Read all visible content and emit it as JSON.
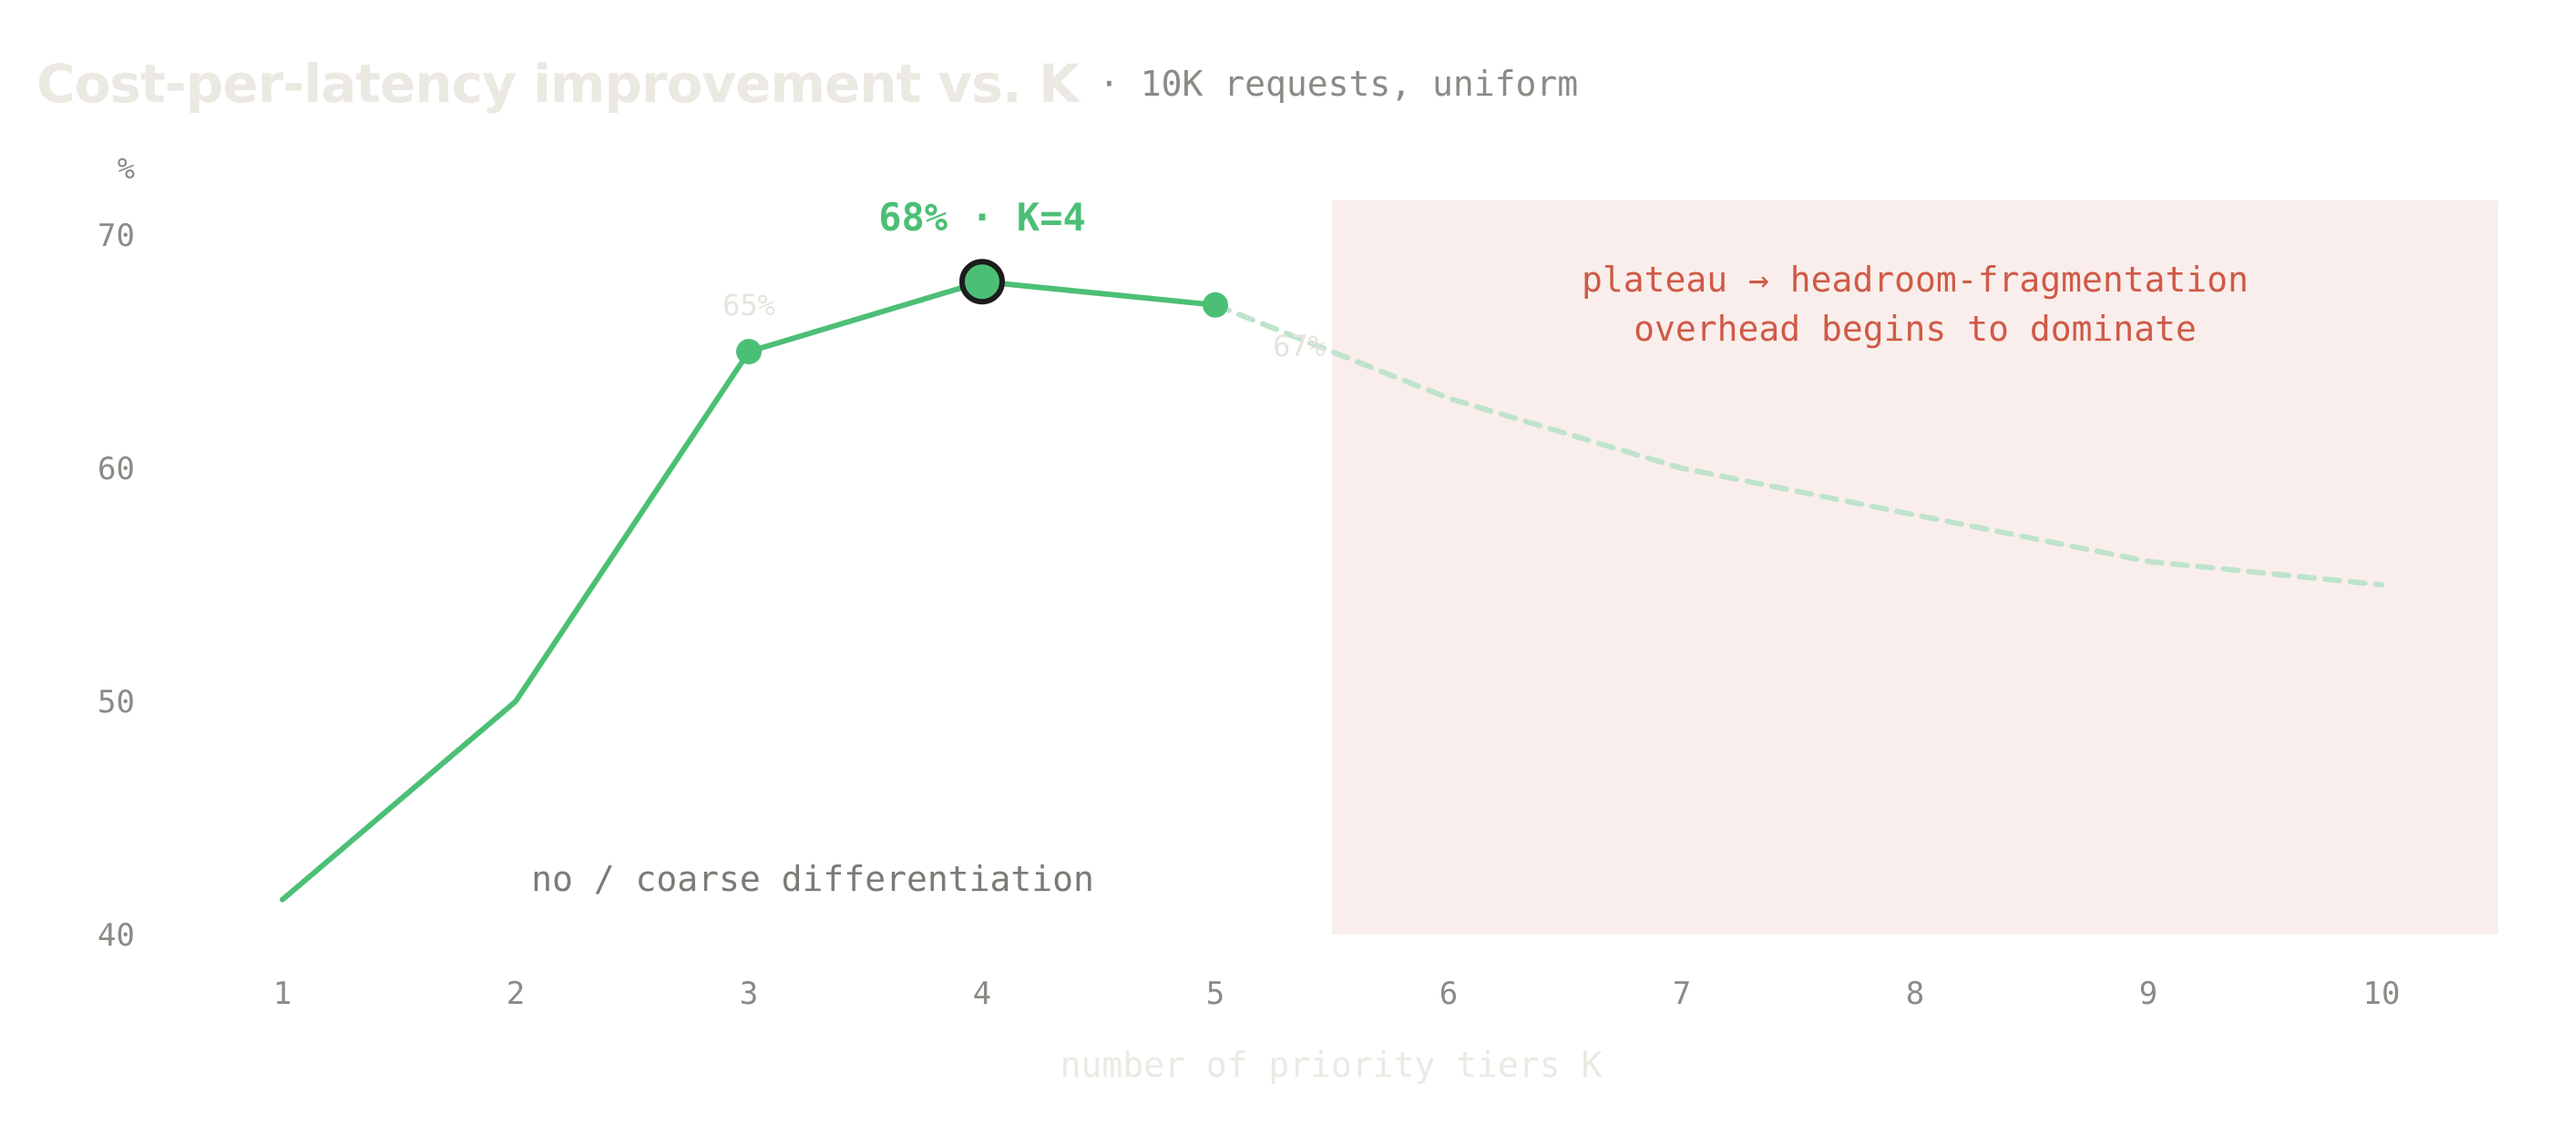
{
  "title": "Cost-per-latency improvement vs. K",
  "subtitle": "· 10K requests, uniform",
  "colors": {
    "line": "#4cbf76",
    "line_faded": "#bfe3cc",
    "shade": "#f9eeeb",
    "annotation_red": "#cf5a47",
    "title": "#ebe9e2",
    "axis_text": "#8c8a85"
  },
  "chart_data": {
    "type": "line",
    "xlabel": "number of priority tiers K",
    "ylabel": "%",
    "xlim": [
      0.1,
      10.5
    ],
    "ylim": [
      40,
      72.7
    ],
    "xticks": [
      1,
      2,
      3,
      4,
      5,
      6,
      7,
      8,
      9,
      10
    ],
    "yticks": [
      40,
      50,
      60,
      70
    ],
    "grid": false,
    "series": [
      {
        "style": "solid",
        "x": [
          1,
          2,
          3,
          4,
          5
        ],
        "y": [
          41.5,
          50,
          65,
          68,
          67
        ]
      },
      {
        "style": "dashed",
        "x": [
          5,
          6,
          7,
          8,
          9,
          10
        ],
        "y": [
          67,
          63,
          60,
          58,
          56,
          55
        ]
      }
    ],
    "point_labels": [
      {
        "x": 3,
        "y": 65,
        "text": "65%"
      },
      {
        "x": 5,
        "y": 67,
        "text": "67%"
      }
    ],
    "highlight": {
      "x": 4,
      "y": 68,
      "label": "68% · K=4"
    },
    "shaded_region": {
      "x_from": 5.5,
      "x_to": 10.5,
      "label_lines": [
        "plateau → headroom-fragmentation",
        "overhead begins to dominate"
      ]
    },
    "annotations": [
      {
        "text": "no / coarse differentiation"
      }
    ]
  }
}
